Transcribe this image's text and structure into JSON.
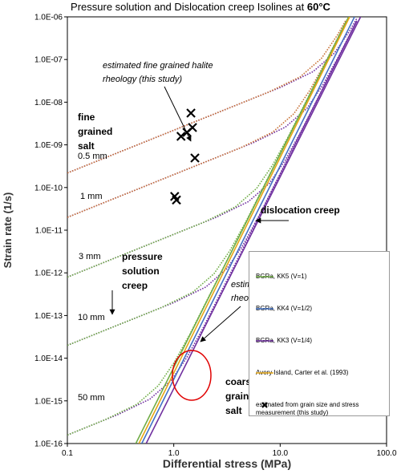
{
  "chart_data": {
    "type": "line",
    "title": "Pressure solution and Dislocation creep Isolines at",
    "title_highlight": "60°C",
    "xlabel": "Differential stress (MPa)",
    "ylabel": "Strain rate (1/s)",
    "xscale": "log",
    "yscale": "log",
    "grid": false,
    "xlim": [
      0.1,
      100
    ],
    "ylim": [
      1e-16,
      1e-06
    ],
    "xticks": [
      0.1,
      {
        "value": 1,
        "label": "1.0"
      },
      {
        "value": 10,
        "label": "10.0"
      },
      {
        "value": 100,
        "label": "100.0"
      }
    ],
    "yticks": [
      {
        "value": 1e-16,
        "label": "1.0E-16"
      },
      {
        "value": 1e-15,
        "label": "1.0E-15"
      },
      {
        "value": 1e-14,
        "label": "1.0E-14"
      },
      {
        "value": 1e-13,
        "label": "1.0E-13"
      },
      {
        "value": 1e-12,
        "label": "1.0E-12"
      },
      {
        "value": 1e-11,
        "label": "1.0E-11"
      },
      {
        "value": 1e-10,
        "label": "1.0E-10"
      },
      {
        "value": 1e-09,
        "label": "1.0E-09"
      },
      {
        "value": 1e-08,
        "label": "1.0E-08"
      },
      {
        "value": 1e-07,
        "label": "1.0E-07"
      },
      {
        "value": 1e-06,
        "label": "1.0E-06"
      }
    ],
    "legend": "lower right",
    "series": [
      {
        "name": "BGRa, KK5 (V=1)",
        "color": "#70ad47",
        "style": "solid",
        "x": [
          0.44,
          44
        ],
        "values": [
          1e-16,
          1e-06
        ]
      },
      {
        "name": "BGRa, KK4 (V=1/2)",
        "color": "#4472c4",
        "style": "solid",
        "x": [
          0.5,
          50
        ],
        "values": [
          1e-16,
          1e-06
        ]
      },
      {
        "name": "BGRa, KK3 (V=1/4)",
        "color": "#7030a0",
        "style": "solid",
        "x": [
          0.55,
          57
        ],
        "values": [
          1e-16,
          1e-06
        ]
      },
      {
        "name": "Avery Island, Carter et al. (1993)",
        "color": "#e6a817",
        "style": "solid",
        "x": [
          0.47,
          45
        ],
        "values": [
          1e-16,
          1e-06
        ]
      },
      {
        "name": "estimated from grain size and stress measurement (this study)",
        "color": "#000000",
        "style": "marker",
        "x": [
          1.45,
          1.5,
          1.33,
          1.17,
          1.58,
          1.02,
          1.06
        ],
        "values": [
          5.55e-09,
          2.55e-09,
          1.96e-09,
          1.58e-09,
          4.92e-10,
          6.2e-11,
          5.1e-11
        ]
      },
      {
        "color": "#7030a0",
        "style": "dotted",
        "x": [
          0.1,
          10.23,
          20.4,
          32.4,
          45.7,
          52.5
        ],
        "values": [
          2.19e-10,
          2.26e-08,
          5.21e-08,
          1.42e-07,
          4.98e-07,
          9.16e-07
        ]
      },
      {
        "color": "#7030a0",
        "style": "dotted",
        "x": [
          0.1,
          5.62,
          11.2,
          17.8,
          25.1,
          35.5,
          52.5
        ],
        "values": [
          2e-11,
          1.13e-09,
          2.61e-09,
          7.1e-09,
          2.49e-08,
          1.19e-07,
          8.05e-07
        ]
      },
      {
        "color": "#7030a0",
        "style": "dotted",
        "x": [
          0.1,
          2.51,
          5.01,
          7.94,
          11.2,
          15.8,
          52.5
        ],
        "values": [
          7.94e-13,
          2.01e-11,
          4.65e-11,
          1.26e-10,
          4.44e-10,
          2.12e-09,
          7.94e-07
        ]
      },
      {
        "color": "#7030a0",
        "style": "dotted",
        "x": [
          0.1,
          1,
          2.0,
          3.16,
          4.47,
          6.31,
          52.5
        ],
        "values": [
          2e-14,
          2.01e-13,
          4.65e-13,
          1.26e-12,
          4.44e-12,
          2.12e-11,
          7.94e-07
        ]
      },
      {
        "color": "#7030a0",
        "style": "dotted",
        "x": [
          0.1,
          0.299,
          0.596,
          0.944,
          1.33,
          1.88,
          52.5
        ],
        "values": [
          1.58e-16,
          4.78e-16,
          1.1e-15,
          2.99e-15,
          1.05e-14,
          5.04e-14,
          7.94e-07
        ]
      },
      {
        "color": "#c8743a",
        "style": "dotted",
        "x": [
          0.1,
          7.74,
          15.45,
          24.5,
          34.6,
          41.7
        ],
        "values": [
          2.19e-10,
          1.71e-08,
          3.94e-08,
          1.07e-07,
          3.77e-07,
          8.61e-07
        ]
      },
      {
        "color": "#c8743a",
        "style": "dotted",
        "x": [
          0.1,
          4.26,
          8.49,
          13.46,
          19.0,
          26.9,
          41.7
        ],
        "values": [
          2e-11,
          8.57e-10,
          1.98e-09,
          5.37e-09,
          1.89e-08,
          9.04e-08,
          7.76e-07
        ]
      },
      {
        "color": "#70ad47",
        "style": "dotted",
        "x": [
          0.1,
          1.9,
          3.79,
          6.01,
          8.49,
          12.0,
          37.9,
          41.7
        ],
        "values": [
          7.94e-13,
          1.52e-11,
          3.52e-11,
          9.55e-11,
          3.36e-10,
          1.61e-09,
          4.78e-07,
          7.67e-07
        ]
      },
      {
        "color": "#70ad47",
        "style": "dotted",
        "x": [
          0.1,
          0.757,
          1.51,
          2.39,
          3.38,
          4.78,
          15.1,
          41.7
        ],
        "values": [
          2e-14,
          1.52e-13,
          3.52e-13,
          9.55e-13,
          3.36e-12,
          1.61e-11,
          4.78e-09,
          7.67e-07
        ]
      },
      {
        "color": "#70ad47",
        "style": "dotted",
        "x": [
          0.1,
          0.226,
          0.451,
          0.714,
          1.01,
          1.43,
          4.51,
          41.7
        ],
        "values": [
          1.58e-16,
          3.61e-16,
          8.34e-16,
          2.26e-15,
          7.96e-15,
          3.81e-14,
          1.13e-11,
          7.67e-07
        ]
      }
    ],
    "annotations": [
      {
        "style": "italic",
        "lines": [
          "estimated fine grained halite",
          "rheology (this study)"
        ]
      },
      {
        "style": "bold",
        "lines": [
          "fine",
          "grained",
          "salt"
        ]
      },
      {
        "style": "plain",
        "lines": [
          "0.5 mm"
        ]
      },
      {
        "style": "plain",
        "lines": [
          "1 mm"
        ]
      },
      {
        "style": "plain",
        "lines": [
          "3 mm"
        ]
      },
      {
        "style": "bold",
        "lines": [
          "pressure",
          "solution",
          "creep"
        ]
      },
      {
        "style": "plain",
        "lines": [
          "10 mm"
        ]
      },
      {
        "style": "bold",
        "lines": [
          "dislocation creep"
        ]
      },
      {
        "style": "italic",
        "lines": [
          "estimated Kristallbrocken",
          "rheology (this study)"
        ]
      },
      {
        "style": "bold",
        "lines": [
          "coarse",
          "grained",
          "salt"
        ]
      },
      {
        "style": "plain",
        "lines": [
          "50 mm"
        ]
      }
    ]
  }
}
